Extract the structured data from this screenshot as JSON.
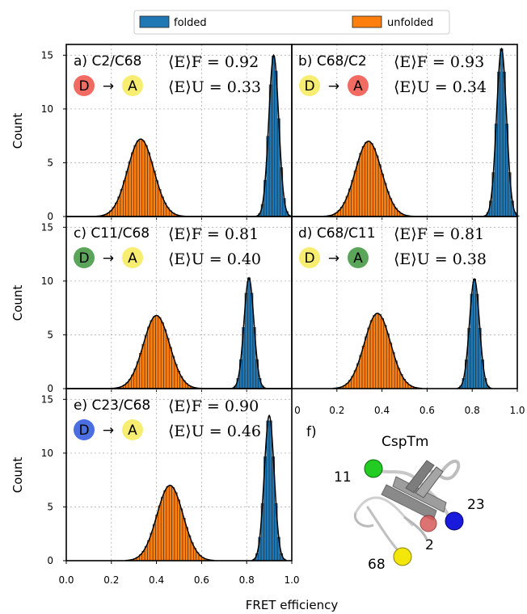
{
  "colors": {
    "folded": "#1f77b4",
    "unfolded": "#ff7f0e",
    "fit_line": "#000000",
    "dye_red": "#f26b63",
    "dye_yellow": "#f7ee71",
    "dye_green": "#5aa55a",
    "dye_blue": "#4b6fe0"
  },
  "legend": {
    "folded": "folded",
    "unfolded": "unfolded"
  },
  "axes_text": {
    "ylabel": "Count",
    "xlabel": "FRET efficiency",
    "x_ticks": [
      "0.0",
      "0.2",
      "0.4",
      "0.6",
      "0.8",
      "1.0"
    ],
    "y_ticks": [
      "0",
      "5",
      "10",
      "15"
    ],
    "xticks_mid": [
      "0",
      "0.2",
      "0.4",
      "0.6",
      "0.8",
      "1.0"
    ]
  },
  "chart_data": [
    {
      "type": "bar",
      "panel": "a) C2/C68",
      "donor": "D",
      "donor_color": "red",
      "acceptor": "A",
      "acceptor_color": "yellow",
      "arrow": "→",
      "eF_label": "⟨E⟩F = 0.92",
      "eU_label": "⟨E⟩U = 0.33",
      "eF": 0.92,
      "eU": 0.33,
      "peak_F": 15.0,
      "peak_U": 7.2,
      "xlim": [
        0,
        1
      ],
      "ylim": [
        0,
        16
      ],
      "grid": true
    },
    {
      "type": "bar",
      "panel": "b) C68/C2",
      "donor": "D",
      "donor_color": "yellow",
      "acceptor": "A",
      "acceptor_color": "red",
      "arrow": "→",
      "eF_label": "⟨E⟩F = 0.93",
      "eU_label": "⟨E⟩U = 0.34",
      "eF": 0.93,
      "eU": 0.34,
      "peak_F": 15.6,
      "peak_U": 7.0,
      "xlim": [
        0,
        1
      ],
      "ylim": [
        0,
        16
      ],
      "grid": true
    },
    {
      "type": "bar",
      "panel": "c) C11/C68",
      "donor": "D",
      "donor_color": "green",
      "acceptor": "A",
      "acceptor_color": "yellow",
      "arrow": "→",
      "eF_label": "⟨E⟩F = 0.81",
      "eU_label": "⟨E⟩U = 0.40",
      "eF": 0.81,
      "eU": 0.4,
      "peak_F": 10.3,
      "peak_U": 6.8,
      "xlim": [
        0,
        1
      ],
      "ylim": [
        0,
        16
      ],
      "grid": true
    },
    {
      "type": "bar",
      "panel": "d) C68/C11",
      "donor": "D",
      "donor_color": "yellow",
      "acceptor": "A",
      "acceptor_color": "green",
      "arrow": "→",
      "eF_label": "⟨E⟩F = 0.81",
      "eU_label": "⟨E⟩U = 0.38",
      "eF": 0.81,
      "eU": 0.38,
      "peak_F": 10.2,
      "peak_U": 7.0,
      "xlim": [
        0,
        1
      ],
      "ylim": [
        0,
        16
      ],
      "grid": true
    },
    {
      "type": "bar",
      "panel": "e) C23/C68",
      "donor": "D",
      "donor_color": "blue",
      "acceptor": "A",
      "acceptor_color": "yellow",
      "arrow": "→",
      "eF_label": "⟨E⟩F = 0.90",
      "eU_label": "⟨E⟩U = 0.46",
      "eF": 0.9,
      "eU": 0.46,
      "peak_F": 13.5,
      "peak_U": 7.0,
      "xlim": [
        0,
        1
      ],
      "ylim": [
        0,
        16
      ],
      "grid": true
    }
  ],
  "structure_panel": {
    "label": "f)",
    "title": "CspTm",
    "labels": {
      "r11": "11",
      "r23": "23",
      "r2": "2",
      "r68": "68"
    }
  }
}
